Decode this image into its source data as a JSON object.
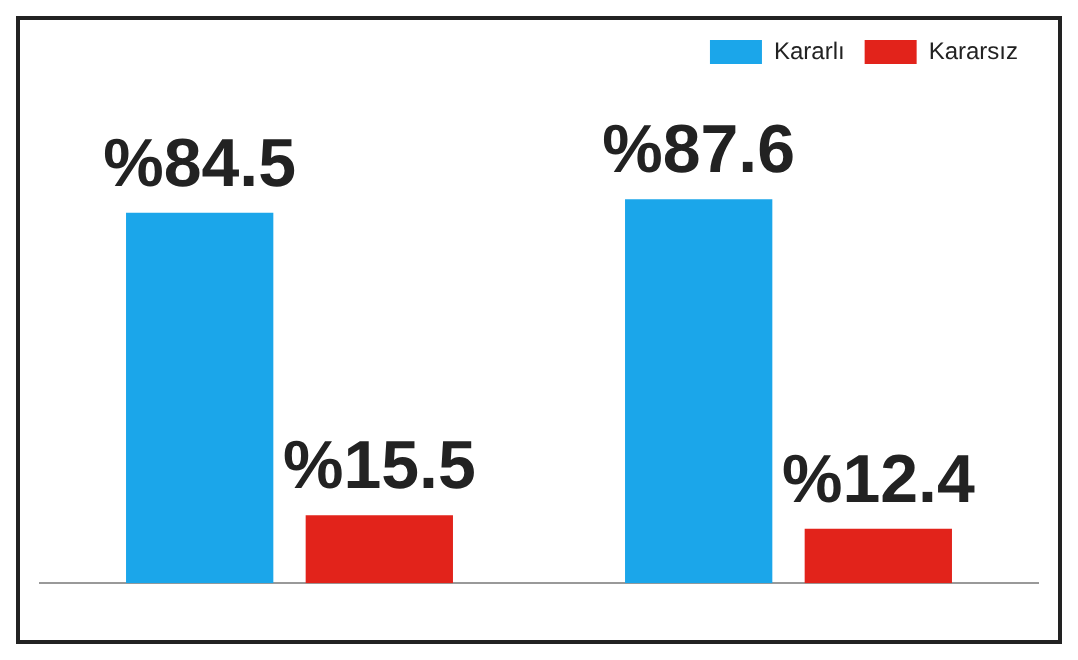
{
  "chart_data": {
    "type": "bar",
    "categories": [
      null,
      null
    ],
    "series": [
      {
        "name": "Kararlı",
        "color": "#1ba6ea",
        "values": [
          84.5,
          87.6
        ],
        "value_labels": [
          "%84.5",
          "%87.6"
        ]
      },
      {
        "name": "Kararsız",
        "color": "#e2231b",
        "values": [
          15.5,
          12.4
        ],
        "value_labels": [
          "%15.5",
          "%12.4"
        ]
      }
    ],
    "legend": "top right",
    "grid": false
  }
}
